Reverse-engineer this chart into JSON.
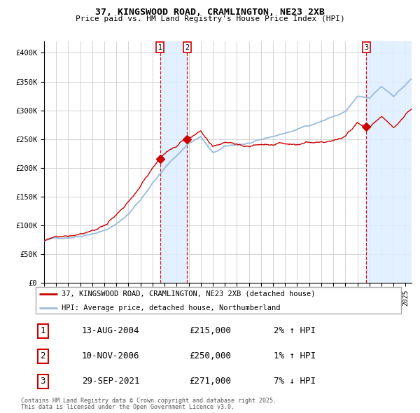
{
  "title_line1": "37, KINGSWOOD ROAD, CRAMLINGTON, NE23 2XB",
  "title_line2": "Price paid vs. HM Land Registry's House Price Index (HPI)",
  "legend_red": "37, KINGSWOOD ROAD, CRAMLINGTON, NE23 2XB (detached house)",
  "legend_blue": "HPI: Average price, detached house, Northumberland",
  "transactions": [
    {
      "num": 1,
      "date": "13-AUG-2004",
      "price": 215000,
      "hpi_pct": "2% ↑ HPI",
      "date_val": 2004.617
    },
    {
      "num": 2,
      "date": "10-NOV-2006",
      "price": 250000,
      "hpi_pct": "1% ↑ HPI",
      "date_val": 2006.86
    },
    {
      "num": 3,
      "date": "29-SEP-2021",
      "price": 271000,
      "hpi_pct": "7% ↓ HPI",
      "date_val": 2021.747
    }
  ],
  "ylim": [
    0,
    420000
  ],
  "xlim_start": 1995.0,
  "xlim_end": 2025.5,
  "background_color": "#ffffff",
  "chart_bg_color": "#ffffff",
  "grid_color": "#cccccc",
  "red_line_color": "#cc0000",
  "blue_line_color": "#99bbdd",
  "dashed_line_color": "#cc0000",
  "shade_color": "#ddeeff",
  "footer": "Contains HM Land Registry data © Crown copyright and database right 2025.\nThis data is licensed under the Open Government Licence v3.0."
}
